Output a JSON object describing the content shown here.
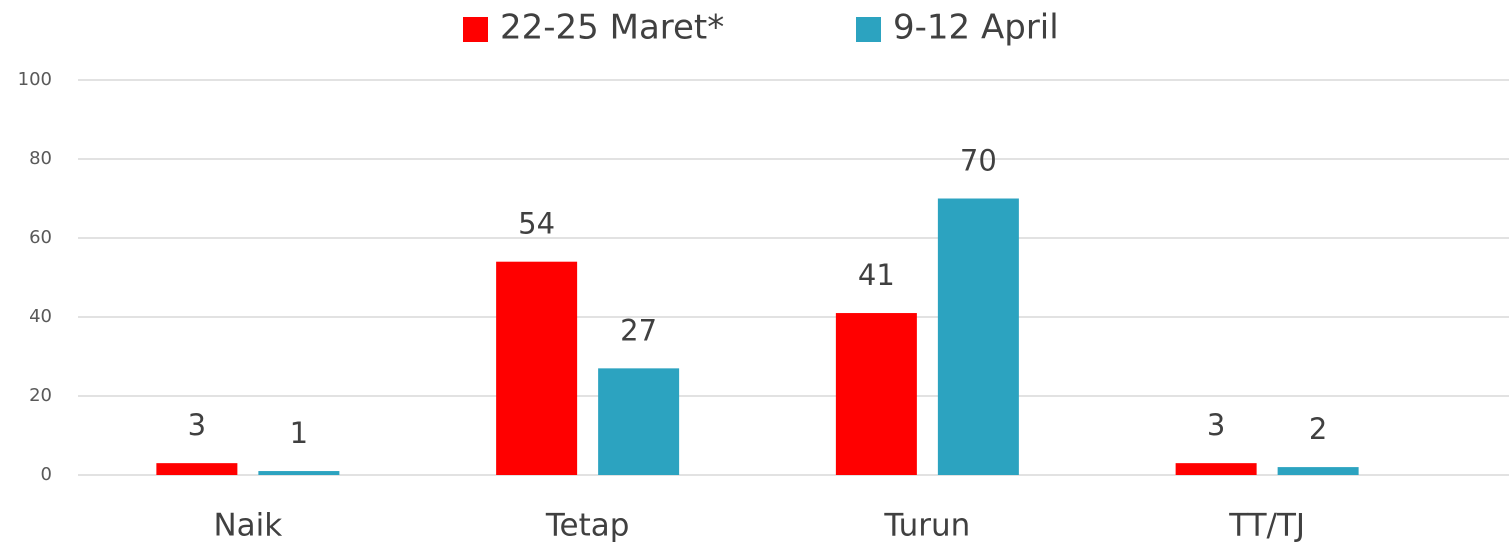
{
  "chart_data": {
    "type": "bar",
    "categories": [
      "Naik",
      "Tetap",
      "Turun",
      "TT/TJ"
    ],
    "series": [
      {
        "name": "22-25 Maret*",
        "color": "#ff0000",
        "values": [
          3,
          54,
          41,
          3
        ]
      },
      {
        "name": "9-12 April",
        "color": "#2ca3c0",
        "values": [
          1,
          27,
          70,
          2
        ]
      }
    ],
    "ylim": [
      0,
      100
    ],
    "yticks": [
      0,
      20,
      40,
      60,
      80,
      100
    ],
    "grid": true,
    "legend": "top"
  }
}
